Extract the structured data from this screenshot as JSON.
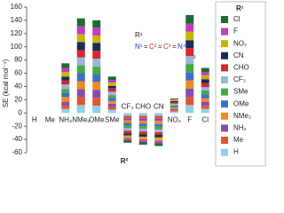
{
  "chart_data": {
    "type": "stacked_bar",
    "y_label": "SE (kcal mol⁻¹)",
    "x_label": "R²",
    "legend_title": "R¹",
    "annotation": [
      "R¹",
      "N¹",
      "=",
      "C²",
      "=",
      "C³",
      "=",
      "N⁴",
      "R²"
    ],
    "categories": [
      "H",
      "Me",
      "NH₂",
      "NMe₂",
      "OMe",
      "SMe",
      "CF₃",
      "CHO",
      "CN",
      "NO₂",
      "F",
      "Cl"
    ],
    "ylim": [
      -60,
      160
    ],
    "yticks": [
      -60,
      -40,
      -20,
      0,
      20,
      40,
      60,
      80,
      100,
      120,
      140,
      160
    ],
    "series": [
      {
        "name": "Cl",
        "color": "#1e6b2e",
        "values": [
          0,
          0,
          7,
          12,
          11,
          5,
          -4,
          -4,
          -4,
          1,
          13,
          6
        ]
      },
      {
        "name": "F",
        "color": "#c03cc0",
        "values": [
          0,
          0,
          6,
          12,
          12,
          4,
          -3,
          -4,
          -4,
          1,
          12,
          5
        ]
      },
      {
        "name": "NO₂",
        "color": "#c8b400",
        "values": [
          0,
          0,
          7,
          12,
          11,
          5,
          -4,
          -4,
          -5,
          2,
          13,
          6
        ]
      },
      {
        "name": "CN",
        "color": "#1c2a55",
        "values": [
          0,
          0,
          6,
          12,
          12,
          4,
          -3,
          -4,
          -4,
          2,
          12,
          6
        ]
      },
      {
        "name": "CHO",
        "color": "#d8262e",
        "values": [
          0,
          0,
          6,
          11,
          12,
          5,
          -4,
          -4,
          -4,
          2,
          12,
          6
        ]
      },
      {
        "name": "CF₃",
        "color": "#9ab6d8",
        "values": [
          0,
          0,
          7,
          12,
          12,
          5,
          -4,
          -4,
          -4,
          2,
          12,
          5
        ]
      },
      {
        "name": "SMe",
        "color": "#45a845",
        "values": [
          0,
          0,
          6,
          12,
          12,
          4,
          -4,
          -4,
          -4,
          2,
          13,
          6
        ]
      },
      {
        "name": "OMe",
        "color": "#3f6fc8",
        "values": [
          0,
          0,
          6,
          12,
          11,
          5,
          -4,
          -4,
          -4,
          2,
          12,
          6
        ]
      },
      {
        "name": "NMe₂",
        "color": "#f08c1e",
        "values": [
          0,
          0,
          7,
          12,
          12,
          4,
          -4,
          -4,
          -5,
          2,
          12,
          5
        ]
      },
      {
        "name": "NH₂",
        "color": "#8a4bb0",
        "values": [
          0,
          0,
          6,
          12,
          12,
          5,
          -3,
          -4,
          -4,
          2,
          13,
          6
        ]
      },
      {
        "name": "Me",
        "color": "#e05530",
        "values": [
          0,
          0,
          5,
          12,
          12,
          4,
          -4,
          -4,
          -4,
          2,
          12,
          5
        ]
      },
      {
        "name": "H",
        "color": "#8fd0ea",
        "values": [
          0,
          0,
          6,
          12,
          11,
          5,
          -4,
          -4,
          -4,
          2,
          12,
          6
        ]
      }
    ]
  }
}
